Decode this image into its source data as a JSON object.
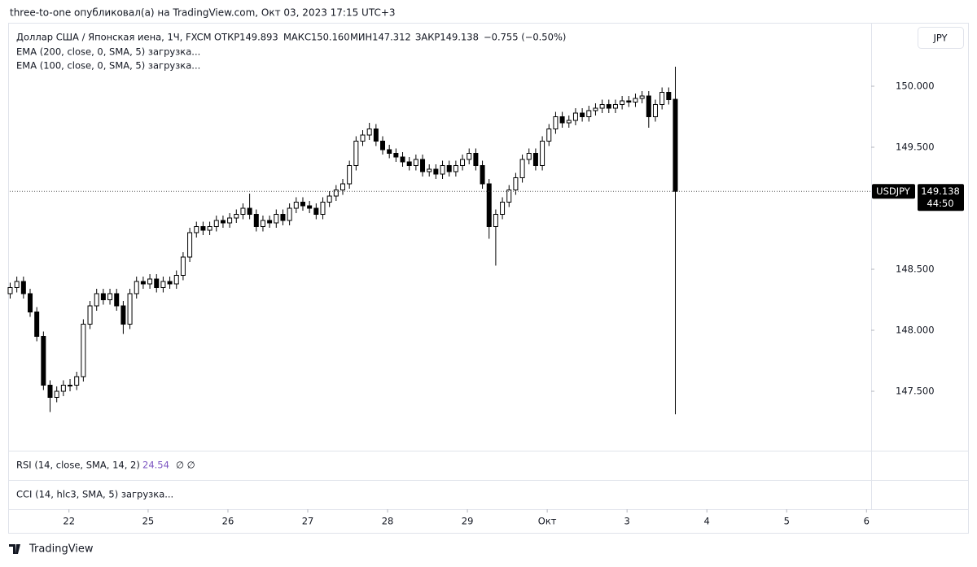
{
  "header": {
    "caption": "three-to-one опубликовал(а) на TradingView.com, Окт 03, 2023 17:15 UTC+3"
  },
  "chart_data": {
    "type": "candlestick",
    "legend": {
      "symbol": "Доллар США / Японская иена, 1Ч, FXCM",
      "open": "ОТКР149.893",
      "high": "МАКС150.160",
      "low": "МИН147.312",
      "close": "ЗАКР149.138",
      "change": "−0.755 (−0.50%)"
    },
    "indicators": [
      "EMA (200, close, 0, SMA, 5) загрузка...",
      "EMA (100, close, 0, SMA, 5) загрузка..."
    ],
    "currency": "JPY",
    "symbol": "USDJPY",
    "last_label": "149.138",
    "countdown": "44:50",
    "up_color": "#ffffff",
    "down_color": "#000000",
    "wick_color": "#000000",
    "xlim": [
      0,
      129.5
    ],
    "xticks": [
      {
        "value": 8.9,
        "label": "22"
      },
      {
        "value": 20.8,
        "label": "25"
      },
      {
        "value": 32.8,
        "label": "26"
      },
      {
        "value": 44.8,
        "label": "27"
      },
      {
        "value": 56.8,
        "label": "28"
      },
      {
        "value": 68.8,
        "label": "29"
      },
      {
        "value": 80.8,
        "label": "Окт"
      },
      {
        "value": 92.8,
        "label": "3"
      },
      {
        "value": 104.8,
        "label": "4"
      },
      {
        "value": 116.8,
        "label": "5"
      },
      {
        "value": 128.8,
        "label": "6"
      }
    ],
    "ylim": [
      147.02,
      150.52
    ],
    "yticks": [
      {
        "value": 147.5,
        "label": "147.500"
      },
      {
        "value": 148,
        "label": "148.000"
      },
      {
        "value": 148.5,
        "label": "148.500"
      },
      {
        "value": 149.5,
        "label": "149.500"
      },
      {
        "value": 150,
        "label": "150.000"
      }
    ],
    "candles": [
      [
        148.3,
        148.39,
        148.26,
        148.35
      ],
      [
        148.35,
        148.44,
        148.31,
        148.4
      ],
      [
        148.4,
        148.44,
        148.26,
        148.3
      ],
      [
        148.3,
        148.34,
        148.11,
        148.15
      ],
      [
        148.15,
        148.19,
        147.91,
        147.95
      ],
      [
        147.95,
        147.99,
        147.51,
        147.55
      ],
      [
        147.55,
        147.59,
        147.33,
        147.45
      ],
      [
        147.45,
        147.54,
        147.41,
        147.5
      ],
      [
        147.5,
        147.59,
        147.46,
        147.55
      ],
      [
        147.55,
        147.6,
        147.5,
        147.55
      ],
      [
        147.55,
        147.66,
        147.51,
        147.62
      ],
      [
        147.62,
        148.09,
        147.58,
        148.05
      ],
      [
        148.05,
        148.24,
        148.01,
        148.2
      ],
      [
        148.2,
        148.34,
        148.16,
        148.3
      ],
      [
        148.3,
        148.34,
        148.21,
        148.25
      ],
      [
        148.25,
        148.34,
        148.21,
        148.3
      ],
      [
        148.3,
        148.34,
        148.16,
        148.2
      ],
      [
        148.2,
        148.24,
        147.97,
        148.05
      ],
      [
        148.05,
        148.34,
        148.01,
        148.3
      ],
      [
        148.3,
        148.44,
        148.26,
        148.4
      ],
      [
        148.4,
        148.44,
        148.34,
        148.38
      ],
      [
        148.38,
        148.46,
        148.34,
        148.42
      ],
      [
        148.42,
        148.46,
        148.31,
        148.35
      ],
      [
        148.35,
        148.44,
        148.31,
        148.4
      ],
      [
        148.4,
        148.44,
        148.34,
        148.38
      ],
      [
        148.38,
        148.49,
        148.34,
        148.45
      ],
      [
        148.45,
        148.64,
        148.41,
        148.6
      ],
      [
        148.6,
        148.84,
        148.56,
        148.8
      ],
      [
        148.8,
        148.89,
        148.76,
        148.85
      ],
      [
        148.85,
        148.89,
        148.78,
        148.82
      ],
      [
        148.82,
        148.89,
        148.78,
        148.85
      ],
      [
        148.85,
        148.94,
        148.81,
        148.9
      ],
      [
        148.9,
        148.94,
        148.84,
        148.88
      ],
      [
        148.88,
        148.96,
        148.84,
        148.92
      ],
      [
        148.92,
        148.99,
        148.88,
        148.95
      ],
      [
        148.95,
        149.04,
        148.91,
        149.0
      ],
      [
        149.0,
        149.12,
        148.91,
        148.95
      ],
      [
        148.95,
        148.99,
        148.81,
        148.85
      ],
      [
        148.85,
        148.94,
        148.81,
        148.9
      ],
      [
        148.9,
        148.94,
        148.84,
        148.88
      ],
      [
        148.88,
        148.99,
        148.84,
        148.95
      ],
      [
        148.95,
        148.99,
        148.86,
        148.9
      ],
      [
        148.9,
        149.04,
        148.86,
        149.0
      ],
      [
        149.0,
        149.09,
        148.96,
        149.05
      ],
      [
        149.05,
        149.09,
        148.98,
        149.02
      ],
      [
        149.02,
        149.06,
        148.96,
        149.0
      ],
      [
        149.0,
        149.04,
        148.91,
        148.95
      ],
      [
        148.95,
        149.09,
        148.91,
        149.05
      ],
      [
        149.05,
        149.14,
        149.01,
        149.1
      ],
      [
        149.1,
        149.19,
        149.06,
        149.15
      ],
      [
        149.15,
        149.24,
        149.11,
        149.2
      ],
      [
        149.2,
        149.39,
        149.16,
        149.35
      ],
      [
        149.35,
        149.59,
        149.31,
        149.55
      ],
      [
        149.55,
        149.64,
        149.51,
        149.6
      ],
      [
        149.6,
        149.7,
        149.56,
        149.65
      ],
      [
        149.65,
        149.69,
        149.51,
        149.55
      ],
      [
        149.55,
        149.59,
        149.44,
        149.48
      ],
      [
        149.48,
        149.52,
        149.41,
        149.45
      ],
      [
        149.45,
        149.49,
        149.38,
        149.42
      ],
      [
        149.42,
        149.46,
        149.34,
        149.38
      ],
      [
        149.38,
        149.42,
        149.31,
        149.35
      ],
      [
        149.35,
        149.44,
        149.31,
        149.4
      ],
      [
        149.4,
        149.44,
        149.26,
        149.3
      ],
      [
        149.3,
        149.36,
        149.26,
        149.32
      ],
      [
        149.32,
        149.36,
        149.24,
        149.28
      ],
      [
        149.28,
        149.39,
        149.24,
        149.35
      ],
      [
        149.35,
        149.39,
        149.26,
        149.3
      ],
      [
        149.3,
        149.39,
        149.26,
        149.35
      ],
      [
        149.35,
        149.44,
        149.31,
        149.4
      ],
      [
        149.4,
        149.49,
        149.36,
        149.45
      ],
      [
        149.45,
        149.49,
        149.31,
        149.35
      ],
      [
        149.35,
        149.39,
        149.16,
        149.2
      ],
      [
        149.2,
        149.24,
        148.75,
        148.85
      ],
      [
        148.85,
        148.99,
        148.53,
        148.95
      ],
      [
        148.95,
        149.09,
        148.91,
        149.05
      ],
      [
        149.05,
        149.19,
        149.01,
        149.15
      ],
      [
        149.15,
        149.29,
        149.11,
        149.25
      ],
      [
        149.25,
        149.44,
        149.21,
        149.4
      ],
      [
        149.4,
        149.49,
        149.36,
        149.45
      ],
      [
        149.45,
        149.49,
        149.31,
        149.35
      ],
      [
        149.35,
        149.59,
        149.31,
        149.55
      ],
      [
        149.55,
        149.69,
        149.51,
        149.65
      ],
      [
        149.65,
        149.79,
        149.61,
        149.75
      ],
      [
        149.75,
        149.79,
        149.66,
        149.7
      ],
      [
        149.7,
        149.76,
        149.66,
        149.72
      ],
      [
        149.72,
        149.82,
        149.68,
        149.78
      ],
      [
        149.78,
        149.82,
        149.71,
        149.75
      ],
      [
        149.75,
        149.84,
        149.71,
        149.8
      ],
      [
        149.8,
        149.86,
        149.76,
        149.82
      ],
      [
        149.82,
        149.89,
        149.78,
        149.85
      ],
      [
        149.85,
        149.89,
        149.78,
        149.82
      ],
      [
        149.82,
        149.89,
        149.78,
        149.85
      ],
      [
        149.85,
        149.92,
        149.81,
        149.88
      ],
      [
        149.88,
        149.92,
        149.83,
        149.87
      ],
      [
        149.87,
        149.94,
        149.83,
        149.9
      ],
      [
        149.9,
        149.96,
        149.86,
        149.92
      ],
      [
        149.92,
        149.96,
        149.66,
        149.75
      ],
      [
        149.75,
        149.89,
        149.71,
        149.85
      ],
      [
        149.85,
        149.99,
        149.81,
        149.95
      ],
      [
        149.95,
        149.99,
        149.85,
        149.89
      ],
      [
        149.893,
        150.16,
        147.312,
        149.138
      ]
    ]
  },
  "panes": [
    {
      "title": "RSI (14, close, SMA, 14, 2)",
      "value": 24.54,
      "extra": "∅ ∅"
    },
    {
      "title": "CCI (14, hlc3, SMA, 5) загрузка..."
    }
  ],
  "footer": {
    "brand": "TradingView"
  }
}
